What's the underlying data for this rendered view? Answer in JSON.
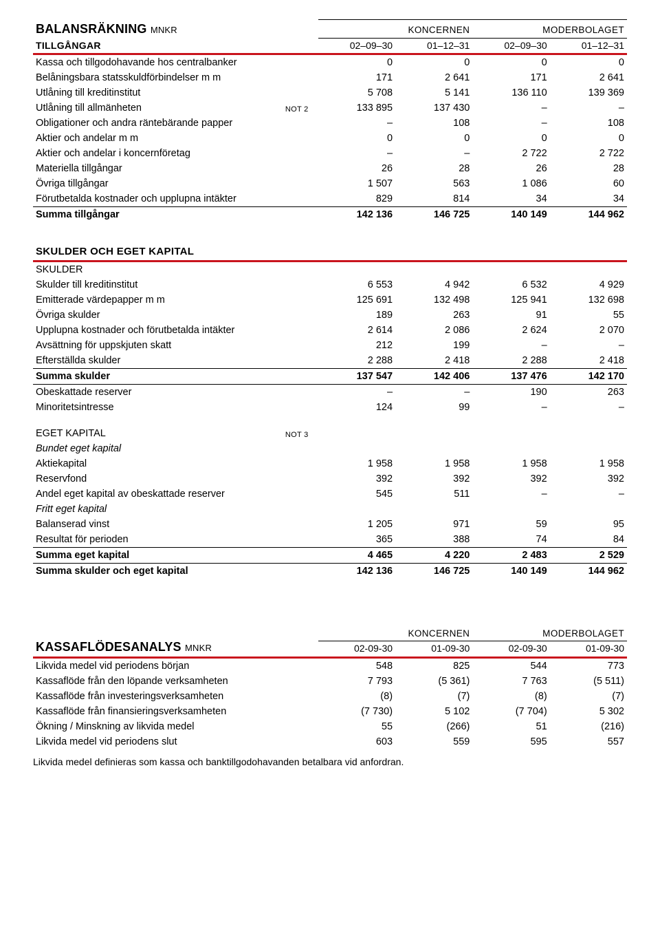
{
  "colors": {
    "rule_red": "#c9141d",
    "text": "#000000",
    "bg": "#ffffff"
  },
  "balance": {
    "title": "BALANSRÄKNING",
    "unit": "MNKR",
    "groups": [
      "KONCERNEN",
      "MODERBOLAGET"
    ],
    "row_heading": "TILLGÅNGAR",
    "cols": [
      "02–09–30",
      "01–12–31",
      "02–09–30",
      "01–12–31"
    ],
    "rows": [
      {
        "label": "Kassa och tillgodohavande hos centralbanker",
        "note": "",
        "v": [
          "0",
          "0",
          "0",
          "0"
        ]
      },
      {
        "label": "Belåningsbara statsskuldförbindelser m m",
        "note": "",
        "v": [
          "171",
          "2 641",
          "171",
          "2 641"
        ]
      },
      {
        "label": "Utlåning till kreditinstitut",
        "note": "",
        "v": [
          "5 708",
          "5 141",
          "136 110",
          "139 369"
        ]
      },
      {
        "label": "Utlåning till allmänheten",
        "note": "NOT 2",
        "v": [
          "133 895",
          "137 430",
          "–",
          "–"
        ]
      },
      {
        "label": "Obligationer och andra räntebärande papper",
        "note": "",
        "v": [
          "–",
          "108",
          "–",
          "108"
        ]
      },
      {
        "label": "Aktier och andelar m m",
        "note": "",
        "v": [
          "0",
          "0",
          "0",
          "0"
        ]
      },
      {
        "label": "Aktier och andelar i koncernföretag",
        "note": "",
        "v": [
          "–",
          "–",
          "2 722",
          "2 722"
        ]
      },
      {
        "label": "Materiella tillgångar",
        "note": "",
        "v": [
          "26",
          "28",
          "26",
          "28"
        ]
      },
      {
        "label": "Övriga tillgångar",
        "note": "",
        "v": [
          "1 507",
          "563",
          "1 086",
          "60"
        ]
      },
      {
        "label": "Förutbetalda kostnader och upplupna intäkter",
        "note": "",
        "v": [
          "829",
          "814",
          "34",
          "34"
        ]
      }
    ],
    "sum_assets": {
      "label": "Summa tillgångar",
      "v": [
        "142 136",
        "146 725",
        "140 149",
        "144 962"
      ]
    },
    "skulder_heading": "SKULDER OCH EGET KAPITAL",
    "skulder_sub": "SKULDER",
    "liab_rows": [
      {
        "label": "Skulder till kreditinstitut",
        "v": [
          "6 553",
          "4 942",
          "6 532",
          "4 929"
        ]
      },
      {
        "label": "Emitterade värdepapper m m",
        "v": [
          "125 691",
          "132 498",
          "125 941",
          "132 698"
        ]
      },
      {
        "label": "Övriga skulder",
        "v": [
          "189",
          "263",
          "91",
          "55"
        ]
      },
      {
        "label": "Upplupna kostnader och förutbetalda intäkter",
        "v": [
          "2 614",
          "2 086",
          "2 624",
          "2 070"
        ]
      },
      {
        "label": "Avsättning för uppskjuten skatt",
        "v": [
          "212",
          "199",
          "–",
          "–"
        ]
      },
      {
        "label": "Efterställda skulder",
        "v": [
          "2 288",
          "2 418",
          "2 288",
          "2 418"
        ]
      }
    ],
    "sum_liab": {
      "label": "Summa skulder",
      "v": [
        "137 547",
        "142 406",
        "137 476",
        "142 170"
      ]
    },
    "post_liab": [
      {
        "label": "Obeskattade reserver",
        "v": [
          "–",
          "–",
          "190",
          "263"
        ]
      },
      {
        "label": "Minoritetsintresse",
        "v": [
          "124",
          "99",
          "–",
          "–"
        ]
      }
    ],
    "equity_heading": "EGET KAPITAL",
    "equity_note": "NOT 3",
    "bound_label": "Bundet eget kapital",
    "equity_bound": [
      {
        "label": "Aktiekapital",
        "v": [
          "1 958",
          "1 958",
          "1 958",
          "1 958"
        ]
      },
      {
        "label": "Reservfond",
        "v": [
          "392",
          "392",
          "392",
          "392"
        ]
      },
      {
        "label": "Andel eget kapital av obeskattade reserver",
        "v": [
          "545",
          "511",
          "–",
          "–"
        ]
      }
    ],
    "free_label": "Fritt eget kapital",
    "equity_free": [
      {
        "label": "Balanserad vinst",
        "v": [
          "1 205",
          "971",
          "59",
          "95"
        ]
      },
      {
        "label": "Resultat för perioden",
        "v": [
          "365",
          "388",
          "74",
          "84"
        ]
      }
    ],
    "sum_equity": {
      "label": "Summa eget kapital",
      "v": [
        "4 465",
        "4 220",
        "2 483",
        "2 529"
      ]
    },
    "sum_total": {
      "label": "Summa skulder och eget kapital",
      "v": [
        "142 136",
        "146 725",
        "140 149",
        "144 962"
      ]
    }
  },
  "cashflow": {
    "title": "KASSAFLÖDESANALYS",
    "unit": "MNKR",
    "groups": [
      "KONCERNEN",
      "MODERBOLAGET"
    ],
    "cols": [
      "02-09-30",
      "01-09-30",
      "02-09-30",
      "01-09-30"
    ],
    "rows": [
      {
        "label": "Likvida medel vid periodens början",
        "v": [
          "548",
          "825",
          "544",
          "773"
        ]
      },
      {
        "label": "Kassaflöde från den löpande verksamheten",
        "v": [
          "7 793",
          "(5 361)",
          "7 763",
          "(5 511)"
        ]
      },
      {
        "label": "Kassaflöde från investeringsverksamheten",
        "v": [
          "(8)",
          "(7)",
          "(8)",
          "(7)"
        ]
      },
      {
        "label": "Kassaflöde från finansieringsverksamheten",
        "v": [
          "(7 730)",
          "5 102",
          "(7 704)",
          "5 302"
        ]
      },
      {
        "label": "Ökning / Minskning av likvida medel",
        "v": [
          "55",
          "(266)",
          "51",
          "(216)"
        ]
      },
      {
        "label": "Likvida medel vid periodens slut",
        "v": [
          "603",
          "559",
          "595",
          "557"
        ]
      }
    ],
    "footnote": "Likvida medel definieras som kassa och banktillgodohavanden betalbara vid anfordran."
  }
}
